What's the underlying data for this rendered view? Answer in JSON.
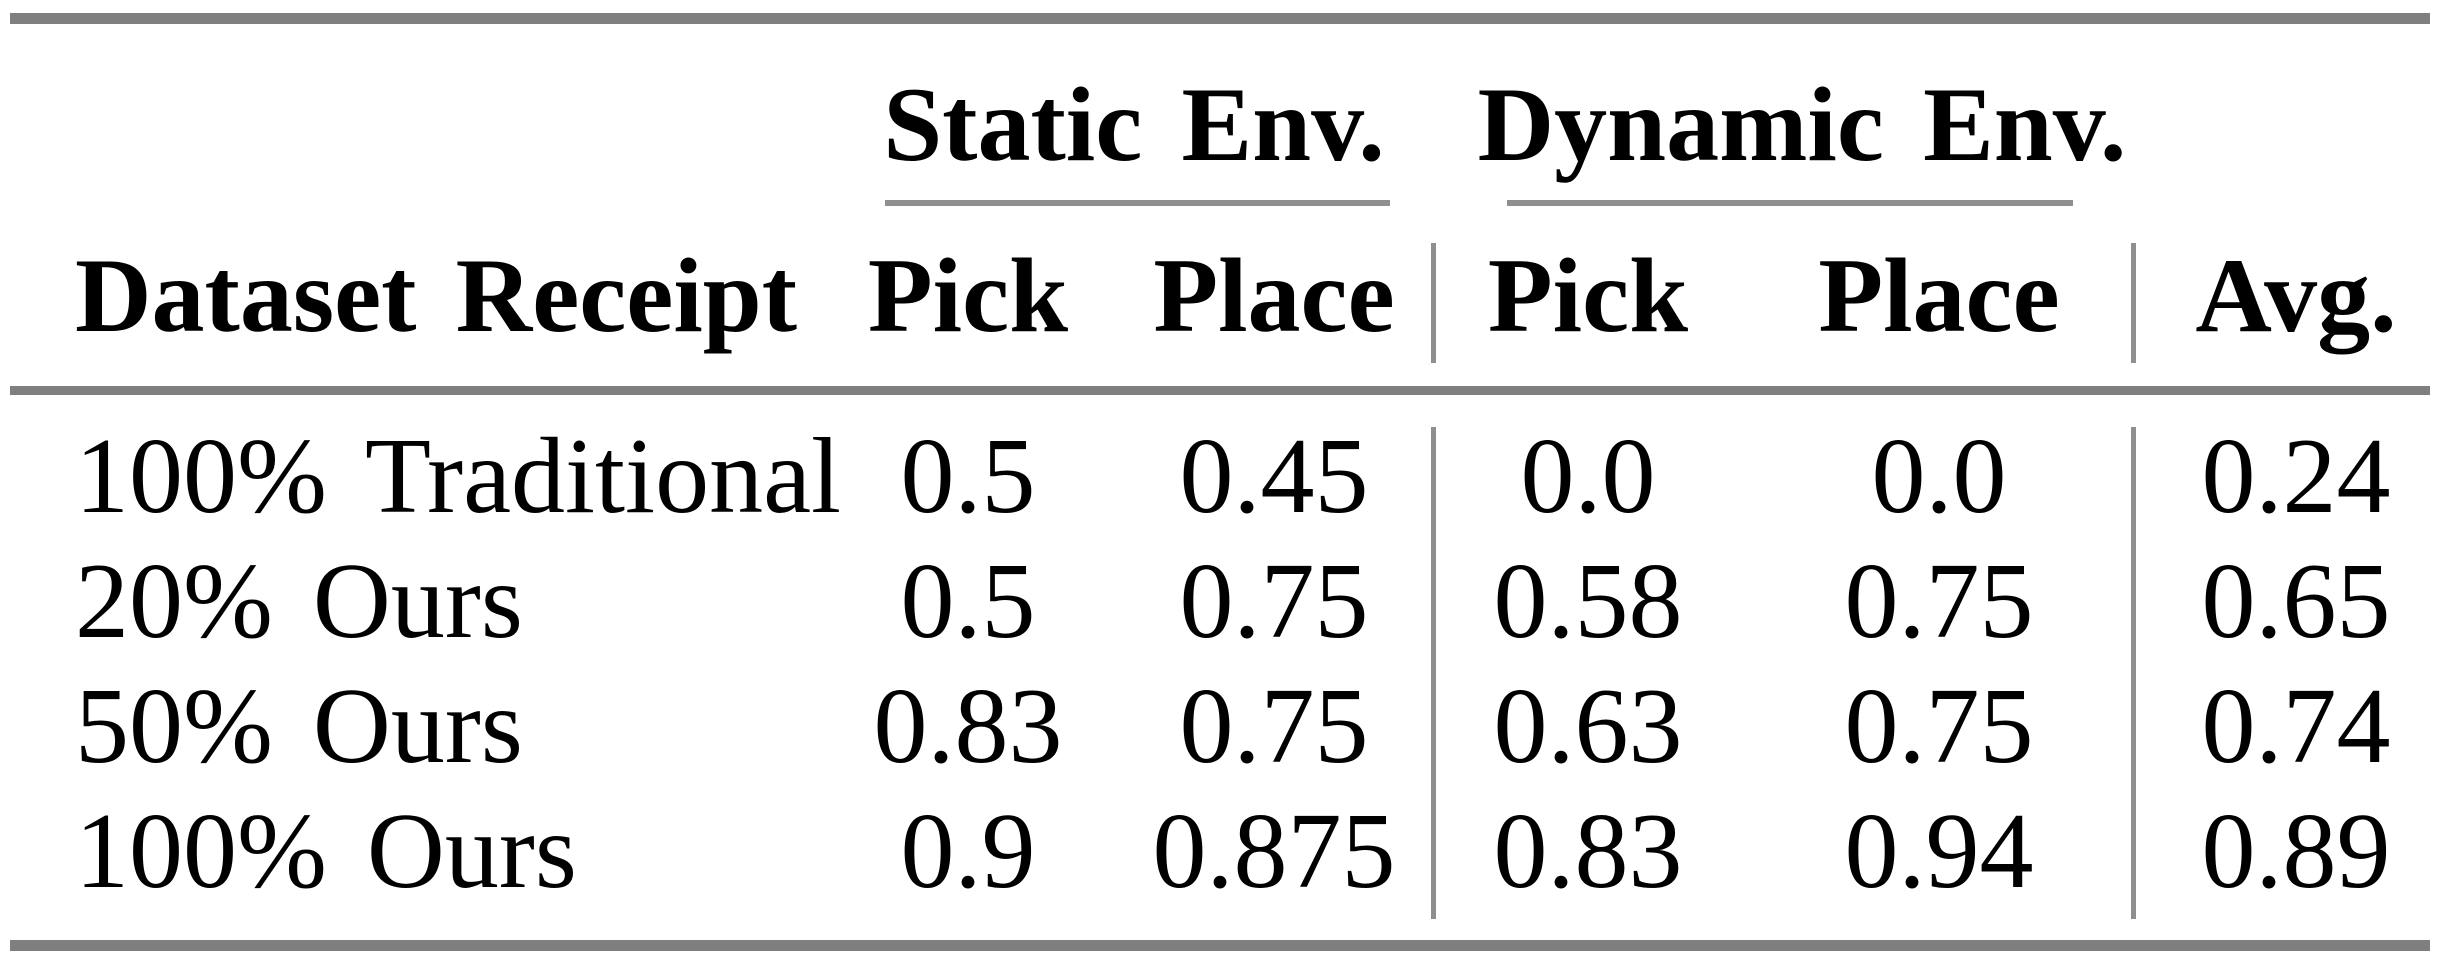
{
  "table": {
    "column_groups": [
      {
        "label": "Static Env."
      },
      {
        "label": "Dynamic Env."
      }
    ],
    "headers": {
      "row_label": "Dataset Receipt",
      "static_pick": "Pick",
      "static_place": "Place",
      "dynamic_pick": "Pick",
      "dynamic_place": "Place",
      "avg": "Avg."
    },
    "rows": [
      {
        "label": "100% Traditional",
        "static_pick": "0.5",
        "static_place": "0.45",
        "dynamic_pick": "0.0",
        "dynamic_place": "0.0",
        "avg": "0.24"
      },
      {
        "label": "20% Ours",
        "static_pick": "0.5",
        "static_place": "0.75",
        "dynamic_pick": "0.58",
        "dynamic_place": "0.75",
        "avg": "0.65"
      },
      {
        "label": "50% Ours",
        "static_pick": "0.83",
        "static_place": "0.75",
        "dynamic_pick": "0.63",
        "dynamic_place": "0.75",
        "avg": "0.74"
      },
      {
        "label": "100% Ours",
        "static_pick": "0.9",
        "static_place": "0.875",
        "dynamic_pick": "0.83",
        "dynamic_place": "0.94",
        "avg": "0.89"
      }
    ]
  },
  "chart_data": {
    "type": "table",
    "title": "",
    "column_groups": [
      "Static Env.",
      "Dynamic Env."
    ],
    "columns": [
      "Dataset Receipt",
      "Static Env. Pick",
      "Static Env. Place",
      "Dynamic Env. Pick",
      "Dynamic Env. Place",
      "Avg."
    ],
    "rows": [
      [
        "100% Traditional",
        0.5,
        0.45,
        0.0,
        0.0,
        0.24
      ],
      [
        "20% Ours",
        0.5,
        0.75,
        0.58,
        0.75,
        0.65
      ],
      [
        "50% Ours",
        0.83,
        0.75,
        0.63,
        0.75,
        0.74
      ],
      [
        "100% Ours",
        0.9,
        0.875,
        0.83,
        0.94,
        0.89
      ]
    ]
  },
  "colors": {
    "thick_rule": "#7f7f7f",
    "thin_rule": "#8f8f8f",
    "text": "#000000",
    "background": "#ffffff"
  }
}
